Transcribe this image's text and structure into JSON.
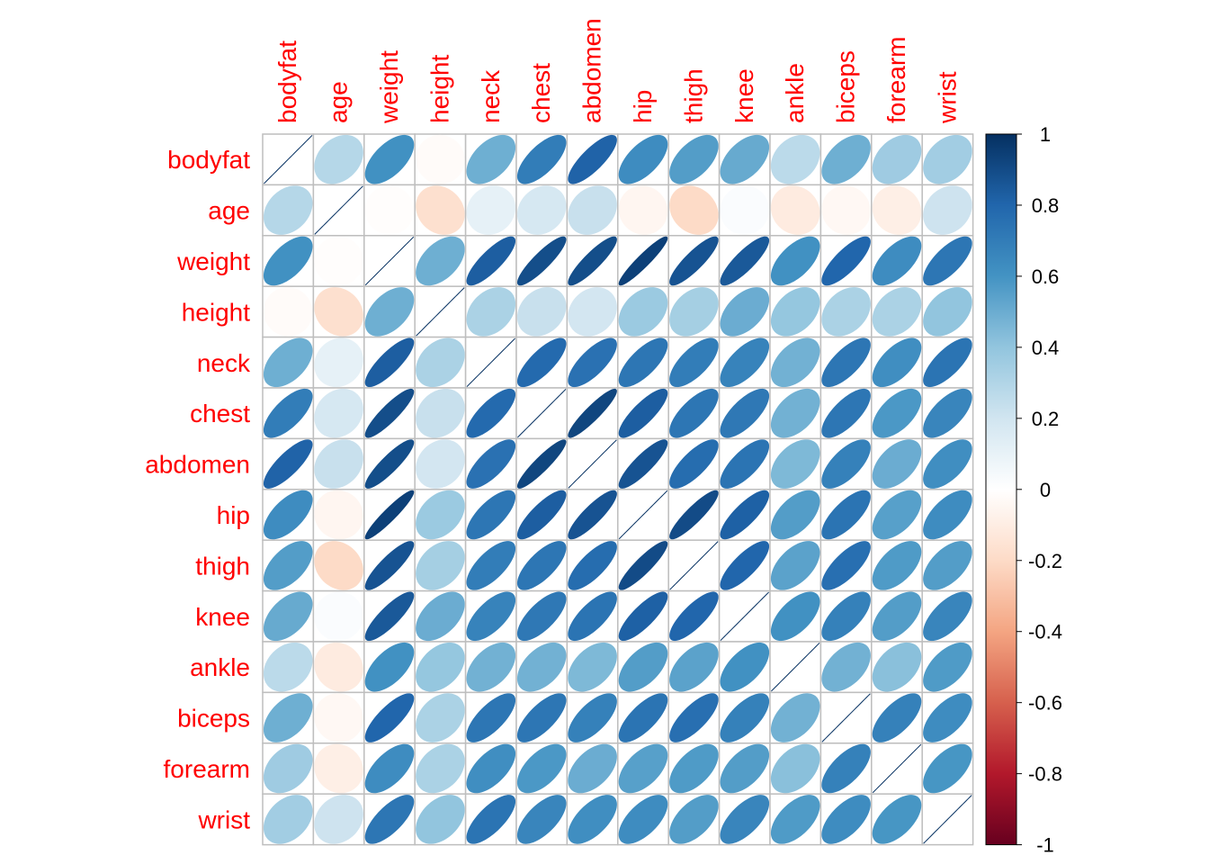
{
  "chart_data": {
    "type": "heatmap",
    "glyph": "ellipse",
    "title": "",
    "variables": [
      "bodyfat",
      "age",
      "weight",
      "height",
      "neck",
      "chest",
      "abdomen",
      "hip",
      "thigh",
      "knee",
      "ankle",
      "biceps",
      "forearm",
      "wrist"
    ],
    "matrix": [
      [
        1.0,
        0.29,
        0.61,
        -0.02,
        0.49,
        0.7,
        0.81,
        0.63,
        0.56,
        0.51,
        0.27,
        0.49,
        0.36,
        0.35
      ],
      [
        0.29,
        1.0,
        -0.01,
        -0.17,
        0.11,
        0.18,
        0.23,
        -0.05,
        -0.2,
        0.02,
        -0.11,
        -0.04,
        -0.09,
        0.21
      ],
      [
        0.61,
        -0.01,
        1.0,
        0.49,
        0.83,
        0.89,
        0.89,
        0.94,
        0.87,
        0.85,
        0.61,
        0.8,
        0.63,
        0.73
      ],
      [
        -0.02,
        -0.17,
        0.49,
        1.0,
        0.32,
        0.23,
        0.19,
        0.37,
        0.34,
        0.5,
        0.39,
        0.32,
        0.32,
        0.4
      ],
      [
        0.49,
        0.11,
        0.83,
        0.32,
        1.0,
        0.78,
        0.75,
        0.73,
        0.7,
        0.67,
        0.48,
        0.73,
        0.62,
        0.74
      ],
      [
        0.7,
        0.18,
        0.89,
        0.23,
        0.78,
        1.0,
        0.92,
        0.83,
        0.73,
        0.72,
        0.48,
        0.73,
        0.58,
        0.66
      ],
      [
        0.81,
        0.23,
        0.89,
        0.19,
        0.75,
        0.92,
        1.0,
        0.87,
        0.77,
        0.74,
        0.45,
        0.68,
        0.5,
        0.62
      ],
      [
        0.63,
        -0.05,
        0.94,
        0.37,
        0.73,
        0.83,
        0.87,
        1.0,
        0.9,
        0.82,
        0.56,
        0.74,
        0.55,
        0.63
      ],
      [
        0.56,
        -0.2,
        0.87,
        0.34,
        0.7,
        0.73,
        0.77,
        0.9,
        1.0,
        0.8,
        0.54,
        0.76,
        0.57,
        0.56
      ],
      [
        0.51,
        0.02,
        0.85,
        0.5,
        0.67,
        0.72,
        0.74,
        0.82,
        0.8,
        1.0,
        0.61,
        0.68,
        0.56,
        0.66
      ],
      [
        0.27,
        -0.11,
        0.61,
        0.39,
        0.48,
        0.48,
        0.45,
        0.56,
        0.54,
        0.61,
        1.0,
        0.48,
        0.42,
        0.57
      ],
      [
        0.49,
        -0.04,
        0.8,
        0.32,
        0.73,
        0.73,
        0.68,
        0.74,
        0.76,
        0.68,
        0.48,
        1.0,
        0.68,
        0.63
      ],
      [
        0.36,
        -0.09,
        0.63,
        0.32,
        0.62,
        0.58,
        0.5,
        0.55,
        0.57,
        0.56,
        0.42,
        0.68,
        1.0,
        0.59
      ],
      [
        0.35,
        0.21,
        0.73,
        0.4,
        0.74,
        0.66,
        0.62,
        0.63,
        0.56,
        0.66,
        0.57,
        0.63,
        0.59,
        1.0
      ]
    ],
    "color_scale": {
      "range": [
        -1,
        1
      ],
      "ticks": [
        "1",
        "0.8",
        "0.6",
        "0.4",
        "0.2",
        "0",
        "-0.2",
        "-0.4",
        "-0.6",
        "-0.8",
        "-1"
      ],
      "tick_values": [
        1,
        0.8,
        0.6,
        0.4,
        0.2,
        0,
        -0.2,
        -0.4,
        -0.6,
        -0.8,
        -1
      ],
      "colors": [
        "#67001F",
        "#B2182B",
        "#D6604D",
        "#F4A582",
        "#FDDBC7",
        "#FFFFFF",
        "#D1E5F0",
        "#92C5DE",
        "#4393C3",
        "#2166AC",
        "#053061"
      ]
    },
    "label_color": "#ff0000",
    "grid_color": "#bebebe",
    "legend_position": "right"
  }
}
